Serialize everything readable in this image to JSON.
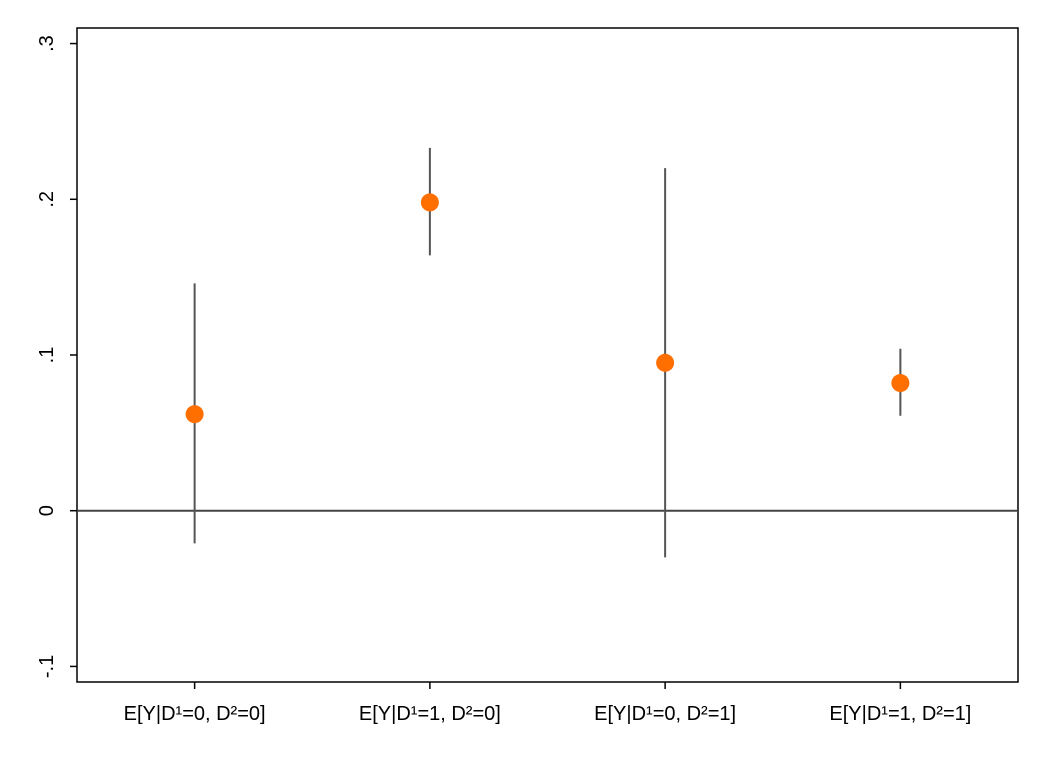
{
  "chart_data": {
    "type": "scatter",
    "title": "",
    "xlabel": "",
    "ylabel": "",
    "ylim": [
      -0.11,
      0.31
    ],
    "yticks": [
      {
        "value": -0.1,
        "label": "-.1"
      },
      {
        "value": 0,
        "label": "0"
      },
      {
        "value": 0.1,
        "label": ".1"
      },
      {
        "value": 0.2,
        "label": ".2"
      },
      {
        "value": 0.3,
        "label": ".3"
      }
    ],
    "categories": [
      "E[Y|D¹=0, D²=0]",
      "E[Y|D¹=1, D²=0]",
      "E[Y|D¹=0, D²=1]",
      "E[Y|D¹=1, D²=1]"
    ],
    "points": [
      {
        "y": 0.062,
        "ci_low": -0.021,
        "ci_high": 0.146
      },
      {
        "y": 0.198,
        "ci_low": 0.164,
        "ci_high": 0.233
      },
      {
        "y": 0.095,
        "ci_low": -0.03,
        "ci_high": 0.22
      },
      {
        "y": 0.082,
        "ci_low": 0.061,
        "ci_high": 0.104
      }
    ],
    "reference_line": 0,
    "grid": false,
    "legend": "none",
    "colors": {
      "marker": "#FF6F00",
      "ci_line": "#555555",
      "reference_line": "#444444",
      "frame": "#000000"
    }
  }
}
